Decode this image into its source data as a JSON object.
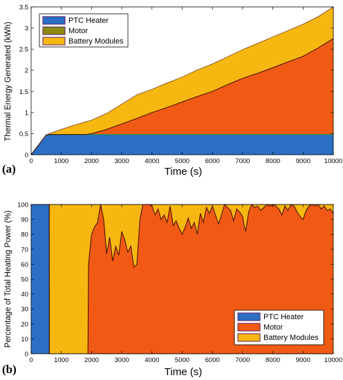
{
  "colors": {
    "ptc": "#2a6fc4",
    "motor": "#f05a14",
    "motor_legend": "#8a8a14",
    "battery": "#f7b711",
    "boundary": "#4a1308",
    "ptc_top_line": "#1f9b3a"
  },
  "chart_data": [
    {
      "panel": "(a)",
      "type": "area",
      "stacked": true,
      "xlabel": "Time (s)",
      "ylabel": "Thermal Energy Generated (kWh)",
      "xlim": [
        0,
        10000
      ],
      "ylim": [
        0,
        3.5
      ],
      "xticks": [
        0,
        1000,
        2000,
        3000,
        4000,
        5000,
        6000,
        7000,
        8000,
        9000,
        10000
      ],
      "yticks": [
        0,
        0.5,
        1,
        1.5,
        2,
        2.5,
        3,
        3.5
      ],
      "ytick_labels": [
        "0",
        "0.5",
        "1",
        "1.5",
        "2",
        "2.5",
        "3",
        "3.5"
      ],
      "legend_position": "top-left",
      "legend": [
        "PTC Heater",
        "Motor",
        "Battery Modules"
      ],
      "x": [
        0,
        500,
        600,
        1000,
        1500,
        1800,
        2000,
        2500,
        3000,
        3500,
        4000,
        4500,
        5000,
        5500,
        6000,
        6500,
        7000,
        7500,
        8000,
        8500,
        9000,
        9500,
        10000
      ],
      "series": [
        {
          "name": "PTC Heater",
          "values": [
            0,
            0.47,
            0.48,
            0.48,
            0.48,
            0.48,
            0.48,
            0.48,
            0.48,
            0.48,
            0.48,
            0.48,
            0.48,
            0.48,
            0.48,
            0.48,
            0.48,
            0.48,
            0.48,
            0.48,
            0.48,
            0.48,
            0.48
          ]
        },
        {
          "name": "Motor",
          "values": [
            0,
            0,
            0,
            0,
            0,
            0,
            0.02,
            0.12,
            0.25,
            0.38,
            0.52,
            0.64,
            0.77,
            0.9,
            1.02,
            1.18,
            1.33,
            1.45,
            1.58,
            1.72,
            1.85,
            2.05,
            2.27
          ]
        },
        {
          "name": "Battery Modules",
          "values": [
            0,
            0,
            0.02,
            0.12,
            0.24,
            0.3,
            0.32,
            0.38,
            0.47,
            0.56,
            0.55,
            0.58,
            0.59,
            0.63,
            0.65,
            0.66,
            0.68,
            0.71,
            0.73,
            0.74,
            0.76,
            0.74,
            0.75
          ]
        }
      ]
    },
    {
      "panel": "(b)",
      "type": "area",
      "stacked": true,
      "xlabel": "Time (s)",
      "ylabel": "Percentage of Total Heating Power (%)",
      "xlim": [
        0,
        10000
      ],
      "ylim": [
        0,
        100
      ],
      "xticks": [
        0,
        1000,
        2000,
        3000,
        4000,
        5000,
        6000,
        7000,
        8000,
        9000,
        10000
      ],
      "yticks": [
        0,
        10,
        20,
        30,
        40,
        50,
        60,
        70,
        80,
        90,
        100
      ],
      "ytick_labels": [
        "0",
        "10",
        "20",
        "30",
        "40",
        "50",
        "60",
        "70",
        "80",
        "90",
        "100"
      ],
      "legend_position": "bottom-right",
      "legend": [
        "PTC Heater",
        "Motor",
        "Battery Modules"
      ],
      "x": [
        0,
        600,
        601,
        1880,
        1900,
        2000,
        2100,
        2200,
        2300,
        2400,
        2500,
        2600,
        2700,
        2800,
        2900,
        3000,
        3100,
        3200,
        3300,
        3400,
        3500,
        3600,
        3700,
        3800,
        3900,
        4000,
        4100,
        4200,
        4300,
        4400,
        4500,
        4600,
        4700,
        4800,
        4900,
        5000,
        5100,
        5200,
        5300,
        5400,
        5500,
        5600,
        5700,
        5800,
        5900,
        6000,
        6100,
        6200,
        6300,
        6400,
        6500,
        6600,
        6700,
        6800,
        6900,
        7000,
        7050,
        7100,
        7200,
        7300,
        7400,
        7500,
        7600,
        7700,
        7800,
        7900,
        8000,
        8100,
        8200,
        8300,
        8400,
        8500,
        8600,
        8700,
        8800,
        8900,
        9000,
        9100,
        9200,
        9300,
        9400,
        9500,
        9600,
        9700,
        9800,
        9900,
        10000
      ],
      "series": [
        {
          "name": "PTC Heater",
          "values": [
            100,
            100,
            0,
            0,
            0,
            0,
            0,
            0,
            0,
            0,
            0,
            0,
            0,
            0,
            0,
            0,
            0,
            0,
            0,
            0,
            0,
            0,
            0,
            0,
            0,
            0,
            0,
            0,
            0,
            0,
            0,
            0,
            0,
            0,
            0,
            0,
            0,
            0,
            0,
            0,
            0,
            0,
            0,
            0,
            0,
            0,
            0,
            0,
            0,
            0,
            0,
            0,
            0,
            0,
            0,
            0,
            0,
            0,
            0,
            0,
            0,
            0,
            0,
            0,
            0,
            0,
            0,
            0,
            0,
            0,
            0,
            0,
            0,
            0,
            0,
            0,
            0,
            0,
            0,
            0,
            0,
            0,
            0,
            0,
            0,
            0,
            0
          ]
        },
        {
          "name": "Motor",
          "values": [
            0,
            0,
            0,
            0,
            60,
            80,
            85,
            88,
            100,
            90,
            67,
            78,
            62,
            72,
            66,
            82,
            76,
            68,
            72,
            58,
            60,
            90,
            100,
            100,
            100,
            99,
            93,
            97,
            90,
            93,
            88,
            99,
            86,
            89,
            84,
            80,
            85,
            91,
            84,
            88,
            80,
            94,
            88,
            98,
            94,
            99,
            93,
            87,
            93,
            100,
            98,
            96,
            89,
            97,
            95,
            92,
            86,
            82,
            95,
            100,
            98,
            99,
            96,
            98,
            100,
            99,
            100,
            99,
            97,
            93,
            99,
            96,
            100,
            99,
            95,
            92,
            90,
            96,
            99,
            100,
            99,
            100,
            97,
            99,
            96,
            97,
            94
          ]
        },
        {
          "name": "Battery Modules",
          "values": [
            0,
            0,
            100,
            100,
            40,
            20,
            15,
            12,
            0,
            10,
            33,
            22,
            38,
            28,
            34,
            18,
            24,
            32,
            28,
            42,
            40,
            10,
            0,
            0,
            0,
            1,
            7,
            3,
            10,
            7,
            12,
            1,
            14,
            11,
            16,
            20,
            15,
            9,
            16,
            12,
            20,
            6,
            12,
            2,
            6,
            1,
            7,
            13,
            7,
            0,
            2,
            4,
            11,
            3,
            5,
            8,
            14,
            18,
            5,
            0,
            2,
            1,
            4,
            2,
            0,
            1,
            0,
            1,
            3,
            7,
            1,
            4,
            0,
            1,
            5,
            8,
            10,
            4,
            1,
            0,
            1,
            0,
            3,
            1,
            4,
            3,
            6
          ]
        }
      ]
    }
  ]
}
